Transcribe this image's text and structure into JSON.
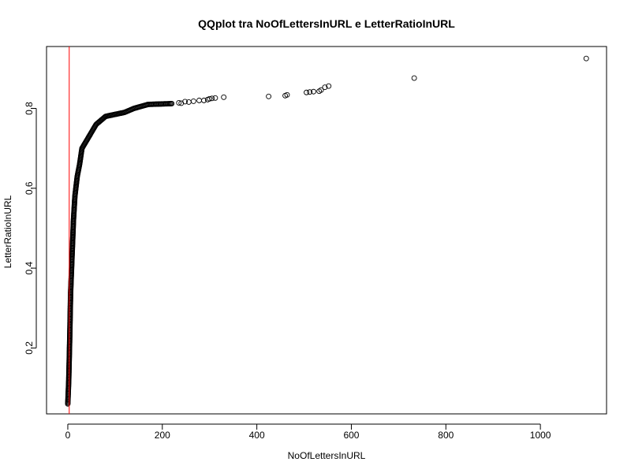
{
  "chart_data": {
    "type": "scatter",
    "title": "QQplot tra NoOfLettersInURL e LetterRatioInURL",
    "xlabel": "NoOfLettersInURL",
    "ylabel": "LetterRatioInURL",
    "xlim": [
      -45,
      1140
    ],
    "ylim": [
      0.035,
      0.955
    ],
    "xticks": [
      0,
      200,
      400,
      600,
      800,
      1000
    ],
    "yticks": [
      0.2,
      0.4,
      0.6,
      0.8
    ],
    "xtick_labels": [
      "0",
      "200",
      "400",
      "600",
      "800",
      "1000"
    ],
    "ytick_labels": [
      "0.2",
      "0.4",
      "0.6",
      "0.8"
    ],
    "grid": false,
    "reference_line": {
      "x": 3,
      "color": "#ff0000"
    },
    "point_color": "#000000",
    "curve": [
      [
        0,
        0.06
      ],
      [
        1,
        0.09
      ],
      [
        2,
        0.12
      ],
      [
        3,
        0.17
      ],
      [
        4,
        0.22
      ],
      [
        5,
        0.28
      ],
      [
        6,
        0.34
      ],
      [
        8,
        0.4
      ],
      [
        10,
        0.46
      ],
      [
        12,
        0.52
      ],
      [
        15,
        0.58
      ],
      [
        20,
        0.63
      ],
      [
        25,
        0.66
      ],
      [
        30,
        0.7
      ],
      [
        40,
        0.72
      ],
      [
        50,
        0.74
      ],
      [
        60,
        0.76
      ],
      [
        70,
        0.77
      ],
      [
        80,
        0.78
      ],
      [
        100,
        0.785
      ],
      [
        120,
        0.79
      ],
      [
        140,
        0.8
      ],
      [
        170,
        0.81
      ],
      [
        220,
        0.812
      ]
    ],
    "points": [
      [
        235,
        0.814
      ],
      [
        240,
        0.813
      ],
      [
        248,
        0.817
      ],
      [
        256,
        0.816
      ],
      [
        266,
        0.818
      ],
      [
        278,
        0.82
      ],
      [
        288,
        0.82
      ],
      [
        296,
        0.822
      ],
      [
        300,
        0.824
      ],
      [
        305,
        0.825
      ],
      [
        312,
        0.826
      ],
      [
        330,
        0.828
      ],
      [
        425,
        0.83
      ],
      [
        460,
        0.832
      ],
      [
        464,
        0.834
      ],
      [
        505,
        0.84
      ],
      [
        512,
        0.841
      ],
      [
        520,
        0.842
      ],
      [
        532,
        0.843
      ],
      [
        536,
        0.846
      ],
      [
        544,
        0.853
      ],
      [
        552,
        0.856
      ],
      [
        733,
        0.876
      ],
      [
        1097,
        0.925
      ]
    ]
  }
}
